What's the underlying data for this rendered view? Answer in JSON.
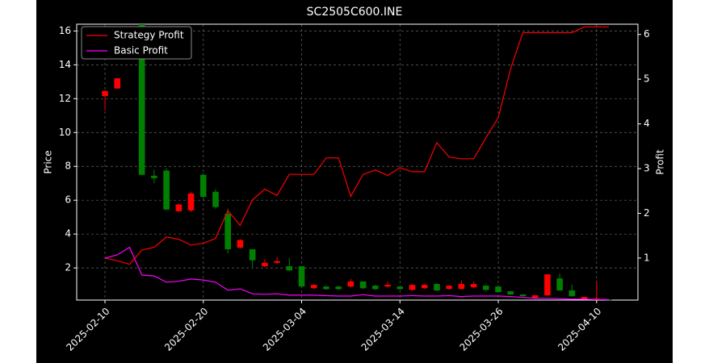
{
  "chart_data": {
    "type": "candlestick",
    "title": "SC2505C600.INE",
    "ylabel": "Price",
    "y2label": "Profit",
    "categories": [
      "2025-02-10",
      null,
      null,
      null,
      null,
      null,
      null,
      null,
      "2025-02-20",
      null,
      null,
      null,
      null,
      null,
      null,
      null,
      "2025-03-04",
      null,
      null,
      null,
      null,
      null,
      null,
      null,
      "2025-03-14",
      null,
      null,
      null,
      null,
      null,
      null,
      null,
      "2025-03-26",
      null,
      null,
      null,
      null,
      null,
      null,
      null,
      "2025-04-10",
      null
    ],
    "open": [
      12.15,
      12.6,
      null,
      16.4,
      7.45,
      7.75,
      5.35,
      5.4,
      7.5,
      6.5,
      5.2,
      3.2,
      3.1,
      2.1,
      2.3,
      2.1,
      2.1,
      0.8,
      0.9,
      0.9,
      0.9,
      1.2,
      0.95,
      0.9,
      0.9,
      0.7,
      0.8,
      1.05,
      0.76,
      0.76,
      0.86,
      0.95,
      0.9,
      0.62,
      0.43,
      0.24,
      0.38,
      1.38,
      0.67,
      0.14,
      0.1,
      0.14
    ],
    "high": [
      12.5,
      13.2,
      null,
      16.4,
      7.8,
      7.9,
      5.8,
      6.5,
      7.6,
      6.65,
      5.5,
      3.7,
      3.1,
      2.5,
      2.65,
      2.6,
      2.1,
      1.05,
      0.95,
      0.95,
      1.35,
      1.2,
      1.0,
      1.2,
      0.95,
      1.05,
      1.05,
      1.1,
      1.0,
      1.25,
      1.2,
      1.0,
      0.95,
      0.65,
      0.45,
      0.4,
      1.62,
      1.67,
      1.0,
      0.3,
      1.24,
      0.15
    ],
    "low": [
      11.3,
      12.6,
      null,
      7.5,
      7.0,
      5.4,
      5.3,
      5.3,
      6.1,
      5.5,
      2.85,
      3.15,
      2.05,
      2.05,
      2.25,
      1.8,
      0.85,
      0.75,
      0.7,
      0.7,
      0.85,
      0.75,
      0.7,
      0.85,
      0.7,
      0.65,
      0.75,
      0.62,
      0.72,
      0.72,
      0.82,
      0.65,
      0.52,
      0.4,
      0.3,
      0.22,
      0.35,
      0.65,
      0.3,
      0.12,
      0.1,
      0.1
    ],
    "close": [
      12.45,
      13.2,
      null,
      7.5,
      7.3,
      5.45,
      5.75,
      6.4,
      6.2,
      5.6,
      3.1,
      3.65,
      2.45,
      2.3,
      2.4,
      1.85,
      0.9,
      1.0,
      0.75,
      0.75,
      1.2,
      0.8,
      0.75,
      1.0,
      0.75,
      1.0,
      1.0,
      0.67,
      0.95,
      1.05,
      1.05,
      0.7,
      0.57,
      0.43,
      0.33,
      0.38,
      1.62,
      0.67,
      0.33,
      0.29,
      0.19,
      0.1
    ],
    "up_color": "#ff0000",
    "down_color": "#008000",
    "series": [
      {
        "name": "Strategy Profit",
        "color": "#ff0000",
        "axis": "y2",
        "values": [
          1.0,
          0.94,
          0.86,
          1.18,
          1.24,
          1.47,
          1.42,
          1.29,
          1.33,
          1.44,
          2.06,
          1.73,
          2.3,
          2.54,
          2.4,
          2.87,
          2.87,
          2.87,
          3.24,
          3.24,
          2.38,
          2.87,
          2.97,
          2.85,
          3.02,
          2.93,
          2.93,
          3.58,
          3.26,
          3.22,
          3.22,
          3.69,
          4.14,
          5.23,
          6.04,
          6.04,
          6.04,
          6.04,
          6.04,
          6.17,
          6.17,
          6.17
        ]
      },
      {
        "name": "Basic Profit",
        "color": "#ff00ff",
        "axis": "y2",
        "values": [
          1.0,
          1.07,
          1.24,
          0.62,
          0.6,
          0.46,
          0.48,
          0.53,
          0.51,
          0.46,
          0.28,
          0.31,
          0.2,
          0.19,
          0.2,
          0.17,
          0.17,
          0.17,
          0.16,
          0.15,
          0.15,
          0.18,
          0.15,
          0.15,
          0.15,
          0.16,
          0.15,
          0.15,
          0.16,
          0.14,
          0.15,
          0.15,
          0.15,
          0.14,
          0.12,
          0.1,
          0.1,
          0.09,
          0.08,
          0.08,
          0.07,
          0.07
        ]
      }
    ],
    "ylim": [
      0.1,
      16.4
    ],
    "yticks": [
      2,
      4,
      6,
      8,
      10,
      12,
      14,
      16
    ],
    "y2lim": [
      0.06,
      6.23
    ],
    "y2ticks": [
      1,
      2,
      3,
      4,
      5,
      6
    ],
    "grid": true,
    "legend": "upper left"
  }
}
